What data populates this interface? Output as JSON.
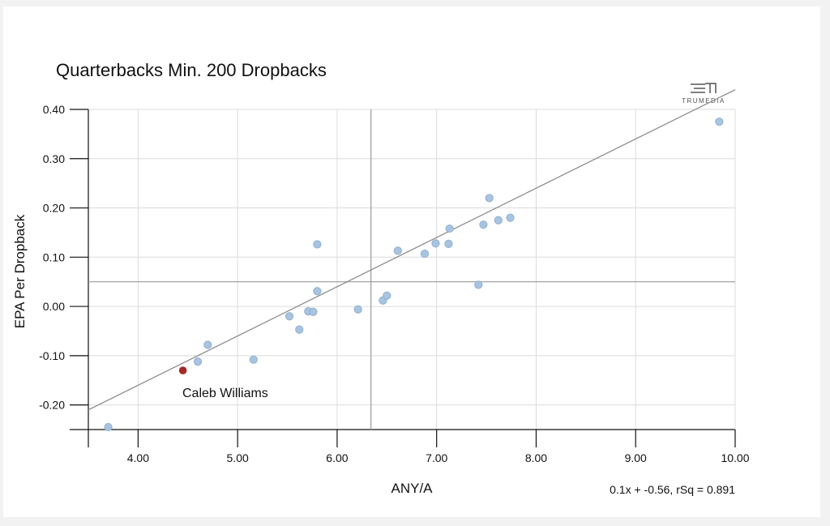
{
  "colors": {
    "point_fill": "#a9c4e0",
    "point_stroke": "#8fb0d3",
    "highlight": "#a32a25",
    "grid": "#dcdcdc",
    "axis": "#111111",
    "trend": "#888888",
    "ref_line": "#999999"
  },
  "brand": {
    "name": "TRUMEDIA",
    "icon": "trumedia-logo"
  },
  "chart_data": {
    "type": "scatter",
    "title": "Quarterbacks Min. 200 Dropbacks",
    "xlabel": "ANY/A",
    "ylabel": "EPA Per Dropback",
    "xlim": [
      3.5,
      10.0
    ],
    "ylim": [
      -0.25,
      0.4
    ],
    "xticks": [
      4.0,
      5.0,
      6.0,
      7.0,
      8.0,
      9.0,
      10.0
    ],
    "xtick_labels": [
      "4.00",
      "5.00",
      "6.00",
      "7.00",
      "8.00",
      "9.00",
      "10.00"
    ],
    "yticks": [
      0.4,
      0.3,
      0.2,
      0.1,
      0.0,
      -0.1,
      -0.2
    ],
    "ytick_labels": [
      "0.40",
      "0.30",
      "0.20",
      "0.10",
      "0.00",
      "-0.10",
      "-0.20"
    ],
    "grid": true,
    "reference_lines": {
      "x": 6.34,
      "y": 0.05
    },
    "trendline": {
      "slope": 0.1,
      "intercept": -0.56,
      "label": "0.1x + -0.56, rSq = 0.891"
    },
    "points": [
      {
        "x": 3.7,
        "y": -0.245
      },
      {
        "x": 4.6,
        "y": -0.112
      },
      {
        "x": 4.7,
        "y": -0.078
      },
      {
        "x": 5.16,
        "y": -0.108
      },
      {
        "x": 5.52,
        "y": -0.02
      },
      {
        "x": 5.62,
        "y": -0.047
      },
      {
        "x": 5.71,
        "y": -0.01
      },
      {
        "x": 5.76,
        "y": -0.011
      },
      {
        "x": 5.8,
        "y": 0.031
      },
      {
        "x": 5.8,
        "y": 0.126
      },
      {
        "x": 6.21,
        "y": -0.006
      },
      {
        "x": 6.46,
        "y": 0.012
      },
      {
        "x": 6.5,
        "y": 0.022
      },
      {
        "x": 6.61,
        "y": 0.113
      },
      {
        "x": 6.88,
        "y": 0.107
      },
      {
        "x": 6.99,
        "y": 0.128
      },
      {
        "x": 7.12,
        "y": 0.127
      },
      {
        "x": 7.13,
        "y": 0.158
      },
      {
        "x": 7.42,
        "y": 0.044
      },
      {
        "x": 7.47,
        "y": 0.166
      },
      {
        "x": 7.53,
        "y": 0.22
      },
      {
        "x": 7.62,
        "y": 0.175
      },
      {
        "x": 7.74,
        "y": 0.18
      },
      {
        "x": 9.84,
        "y": 0.375
      }
    ],
    "highlight": {
      "x": 4.45,
      "y": -0.13,
      "label": "Caleb Williams"
    }
  }
}
